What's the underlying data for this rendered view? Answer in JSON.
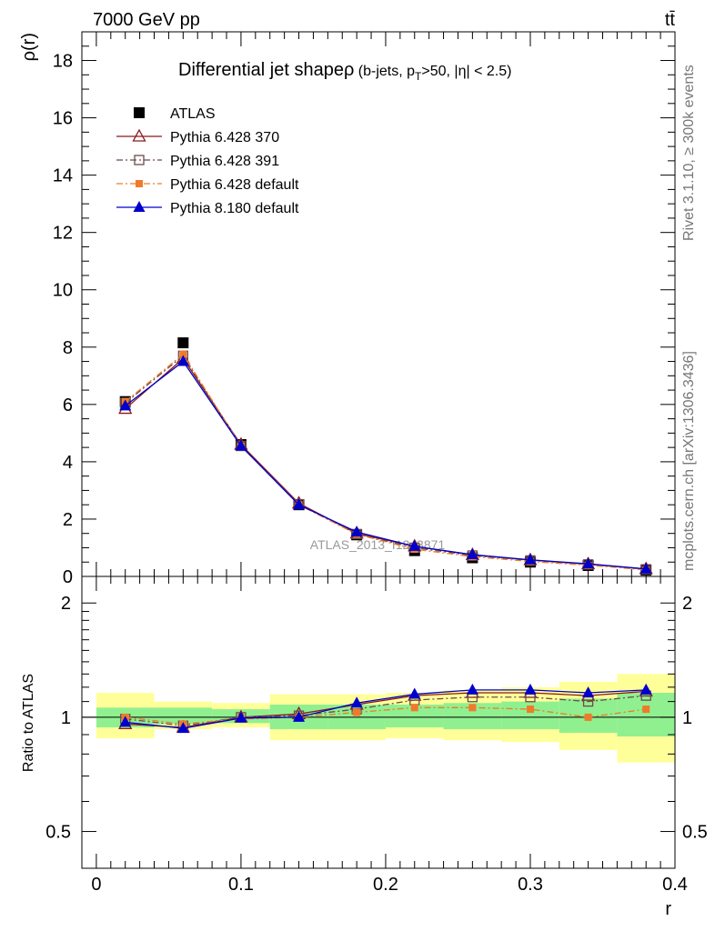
{
  "header": {
    "left": "7000 GeV pp",
    "right": "tt̄"
  },
  "side_labels": {
    "rivet": "Rivet 3.1.10, ≥ 300k events",
    "source": "mcplots.cern.ch [arXiv:1306.3436]"
  },
  "chart_data": [
    {
      "type": "line",
      "title_main": "Differential jet shapeρ",
      "title_sub": "(b-jets, p",
      "title_sub_T": "T",
      "title_sub_rest": ">50, |η| < 2.5)",
      "ylabel": "ρ(r)",
      "xlabel": "r",
      "watermark": "ATLAS_2013_I1243871",
      "xlim": [
        -0.01,
        0.4
      ],
      "ylim": [
        0,
        19
      ],
      "yticks": [
        0,
        2,
        4,
        6,
        8,
        10,
        12,
        14,
        16,
        18
      ],
      "ytick_labels": [
        "0",
        "2",
        "4",
        "6",
        "8",
        "10",
        "12",
        "14",
        "16",
        "18"
      ],
      "x": [
        0.02,
        0.06,
        0.1,
        0.14,
        0.18,
        0.22,
        0.26,
        0.3,
        0.34,
        0.38
      ],
      "bin_edges": [
        0.0,
        0.04,
        0.08,
        0.12,
        0.16,
        0.2,
        0.24,
        0.28,
        0.32,
        0.36,
        0.4
      ],
      "series": [
        {
          "name": "ATLAS",
          "color": "#000000",
          "marker": "square-filled",
          "line": "none",
          "values": [
            6.1,
            8.15,
            4.6,
            2.5,
            1.45,
            0.9,
            0.65,
            0.5,
            0.38,
            0.22
          ]
        },
        {
          "name": "Pythia 6.428 370",
          "color": "#8b1a1a",
          "marker": "triangle-open",
          "line": "solid",
          "values": [
            5.85,
            7.6,
            4.6,
            2.55,
            1.5,
            1.05,
            0.75,
            0.57,
            0.43,
            0.26
          ]
        },
        {
          "name": "Pythia 6.428 391",
          "color": "#6e4b4b",
          "marker": "square-open",
          "line": "dashdot",
          "values": [
            6.05,
            7.7,
            4.55,
            2.52,
            1.48,
            1.0,
            0.73,
            0.56,
            0.42,
            0.25
          ]
        },
        {
          "name": "Pythia 6.428 default",
          "color": "#f07a2a",
          "marker": "square-filled-small",
          "line": "dashdot",
          "values": [
            6.1,
            7.75,
            4.55,
            2.5,
            1.47,
            0.95,
            0.69,
            0.52,
            0.39,
            0.23
          ]
        },
        {
          "name": "Pythia 8.180 default",
          "color": "#0000cc",
          "marker": "triangle-filled",
          "line": "solid",
          "values": [
            5.95,
            7.5,
            4.55,
            2.5,
            1.55,
            1.05,
            0.76,
            0.58,
            0.44,
            0.26
          ]
        }
      ]
    },
    {
      "type": "line",
      "ylabel": "Ratio to ATLAS",
      "xlabel": "r",
      "scale": "log",
      "ylim": [
        0.4,
        2.35
      ],
      "yticks": [
        0.5,
        1,
        2
      ],
      "ytick_labels": [
        "0.5",
        "1",
        "2"
      ],
      "xticks": [
        0,
        0.1,
        0.2,
        0.3,
        0.4
      ],
      "xtick_labels": [
        "0",
        "0.1",
        "0.2",
        "0.3",
        "0.4"
      ],
      "bands": {
        "bin_edges": [
          0.0,
          0.04,
          0.08,
          0.12,
          0.16,
          0.2,
          0.24,
          0.28,
          0.32,
          0.36,
          0.4
        ],
        "stat_color": "#90f090",
        "stat_low": [
          0.94,
          0.96,
          0.965,
          0.93,
          0.93,
          0.94,
          0.93,
          0.93,
          0.91,
          0.89
        ],
        "stat_high": [
          1.06,
          1.06,
          1.05,
          1.08,
          1.08,
          1.08,
          1.09,
          1.1,
          1.12,
          1.16
        ],
        "total_color": "#ffff99",
        "total_low": [
          0.88,
          0.93,
          0.94,
          0.87,
          0.87,
          0.88,
          0.87,
          0.86,
          0.82,
          0.76
        ],
        "total_high": [
          1.16,
          1.1,
          1.09,
          1.15,
          1.15,
          1.16,
          1.18,
          1.2,
          1.24,
          1.3
        ]
      },
      "x": [
        0.02,
        0.06,
        0.1,
        0.14,
        0.18,
        0.22,
        0.26,
        0.3,
        0.34,
        0.38
      ],
      "series": [
        {
          "name": "Pythia 6.428 370",
          "color": "#8b1a1a",
          "marker": "triangle-open",
          "line": "solid",
          "values": [
            0.96,
            0.94,
            1.0,
            1.02,
            1.08,
            1.14,
            1.16,
            1.16,
            1.14,
            1.17
          ]
        },
        {
          "name": "Pythia 6.428 391",
          "color": "#6e4b4b",
          "marker": "square-open",
          "line": "dashdot",
          "values": [
            0.99,
            0.95,
            1.0,
            1.01,
            1.05,
            1.11,
            1.13,
            1.13,
            1.1,
            1.14
          ]
        },
        {
          "name": "Pythia 6.428 default",
          "color": "#f07a2a",
          "marker": "square-filled-small",
          "line": "dashdot",
          "values": [
            1.0,
            0.96,
            0.99,
            1.0,
            1.03,
            1.06,
            1.06,
            1.05,
            1.0,
            1.05
          ]
        },
        {
          "name": "Pythia 8.180 default",
          "color": "#0000cc",
          "marker": "triangle-filled",
          "line": "solid",
          "values": [
            0.97,
            0.935,
            0.995,
            1.0,
            1.09,
            1.15,
            1.18,
            1.18,
            1.16,
            1.18
          ]
        }
      ]
    }
  ]
}
